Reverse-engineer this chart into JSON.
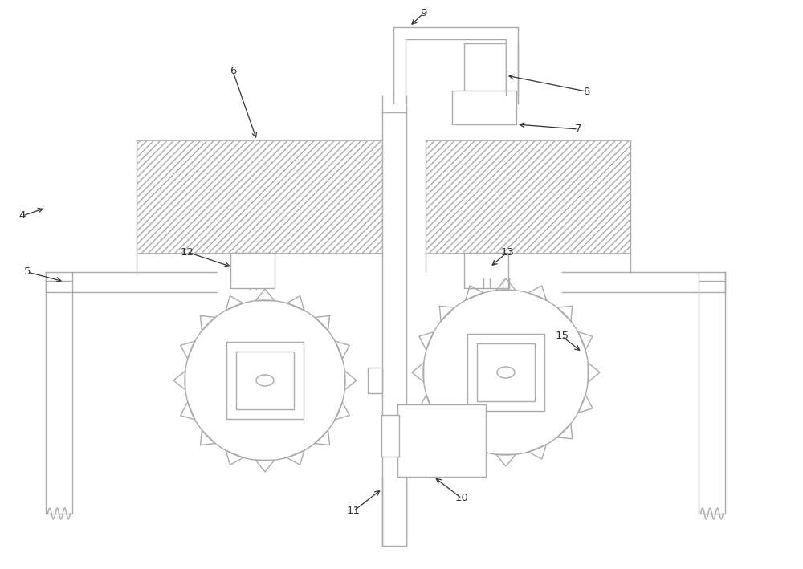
{
  "bg_color": "#ffffff",
  "line_color": "#aaaaaa",
  "label_color": "#333333",
  "fig_width": 10.0,
  "fig_height": 7.09
}
